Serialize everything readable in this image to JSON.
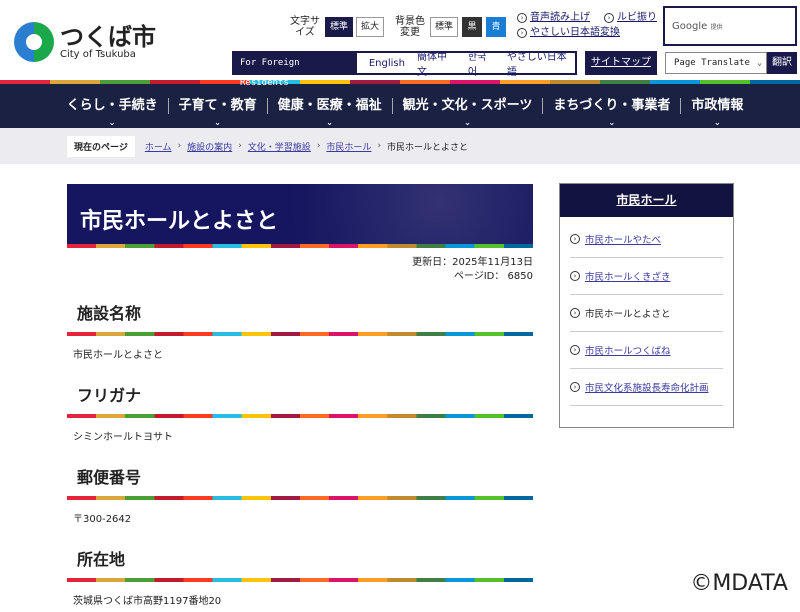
{
  "header": {
    "logo_jp": "つくば市",
    "logo_en": "City of Tsukuba",
    "font_size_label": "文字サイズ",
    "font_standard": "標準",
    "font_large": "拡大",
    "bg_label": "背景色変更",
    "bg_standard": "標準",
    "bg_black": "黒",
    "bg_blue": "青",
    "read_aloud": "音声読み上げ",
    "ruby": "ルビ振り",
    "easy_japanese": "やさしい日本語変換",
    "google": "Google",
    "google_sub": "提供",
    "foreign_label": "For Foreign Residents",
    "languages": [
      "English",
      "簡体中文",
      "한국어",
      "やさしい日本語"
    ],
    "sitemap": "サイトマップ",
    "translate_select": "Page Translate",
    "translate_btn": "翻訳"
  },
  "nav": [
    "くらし・手続き",
    "子育て・教育",
    "健康・医療・福祉",
    "観光・文化・スポーツ",
    "まちづくり・事業者",
    "市政情報"
  ],
  "breadcrumb": {
    "label": "現在のページ",
    "items": [
      "ホーム",
      "施設の案内",
      "文化・学習施設",
      "市民ホール"
    ],
    "current": "市民ホールとよさと"
  },
  "page": {
    "title": "市民ホールとよさと",
    "updated": "更新日：2025年11月13日",
    "page_id": "ページID： 6850",
    "sections": [
      {
        "h": "施設名称",
        "v": "市民ホールとよさと"
      },
      {
        "h": "フリガナ",
        "v": "シミンホールトヨサト"
      },
      {
        "h": "郵便番号",
        "v": "〒300-2642"
      },
      {
        "h": "所在地",
        "v": "茨城県つくば市高野1197番地20"
      }
    ]
  },
  "sidebar": {
    "title": "市民ホール",
    "items": [
      "市民ホールやたべ",
      "市民ホールくきざき",
      "市民ホールとよさと",
      "市民ホールつくばね",
      "市民文化系施設長寿命化計画"
    ]
  },
  "watermark": "©MDATA"
}
